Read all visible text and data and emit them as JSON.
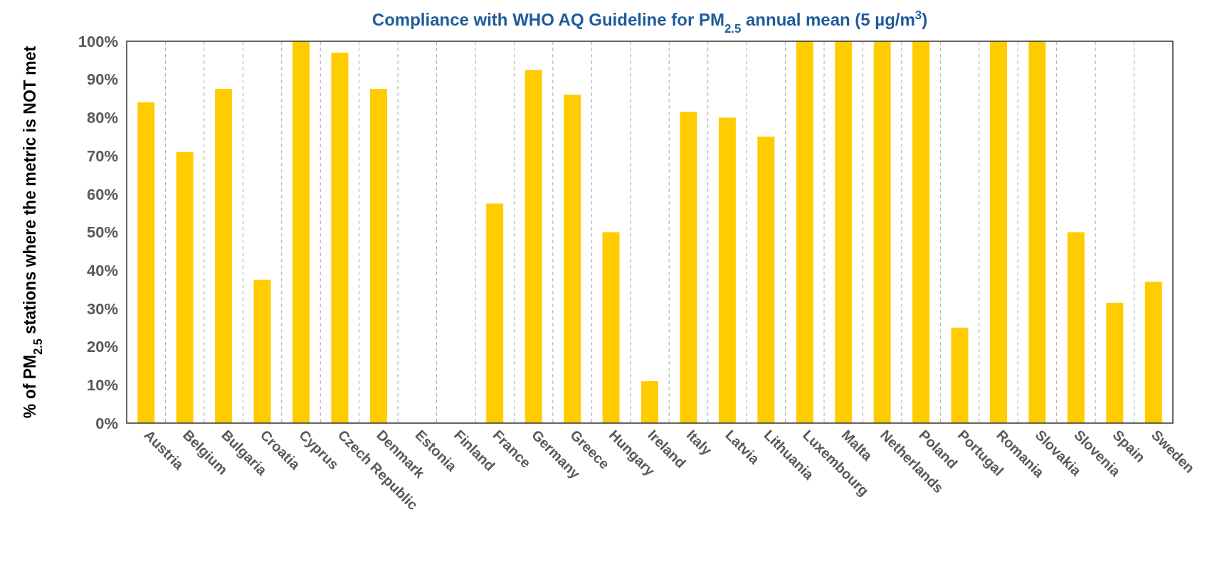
{
  "chart_data": {
    "type": "bar",
    "title": "Compliance with WHO AQ Guideline for PM$_{2.5}$ annual mean (5 µg/m$^{3}$)",
    "ylabel": "% of PM$_{2.5}$ stations where the metric is NOT met",
    "categories": [
      "Austria",
      "Belgium",
      "Bulgaria",
      "Croatia",
      "Cyprus",
      "Czech Republic",
      "Denmark",
      "Estonia",
      "Finland",
      "France",
      "Germany",
      "Greece",
      "Hungary",
      "Ireland",
      "Italy",
      "Latvia",
      "Lithuania",
      "Luxembourg",
      "Malta",
      "Netherlands",
      "Poland",
      "Portugal",
      "Romania",
      "Slovakia",
      "Slovenia",
      "Spain",
      "Sweden"
    ],
    "values": [
      84,
      71,
      87.5,
      37.5,
      100,
      97,
      87.5,
      0,
      0,
      57.5,
      92.5,
      86,
      50,
      11,
      81.5,
      80,
      75,
      100,
      100,
      100,
      100,
      25,
      100,
      100,
      50,
      31.5,
      37
    ],
    "color": "#ffcc00",
    "ylim": [
      0,
      100
    ],
    "yticks": [
      {
        "value": 0,
        "label": "0%"
      },
      {
        "value": 10,
        "label": "10%"
      },
      {
        "value": 20,
        "label": "20%"
      },
      {
        "value": 30,
        "label": "30%"
      },
      {
        "value": 40,
        "label": "40%"
      },
      {
        "value": 50,
        "label": "50%"
      },
      {
        "value": 60,
        "label": "60%"
      },
      {
        "value": 70,
        "label": "70%"
      },
      {
        "value": 80,
        "label": "80%"
      },
      {
        "value": 90,
        "label": "90%"
      },
      {
        "value": 100,
        "label": "100%"
      }
    ],
    "grid": "x"
  }
}
